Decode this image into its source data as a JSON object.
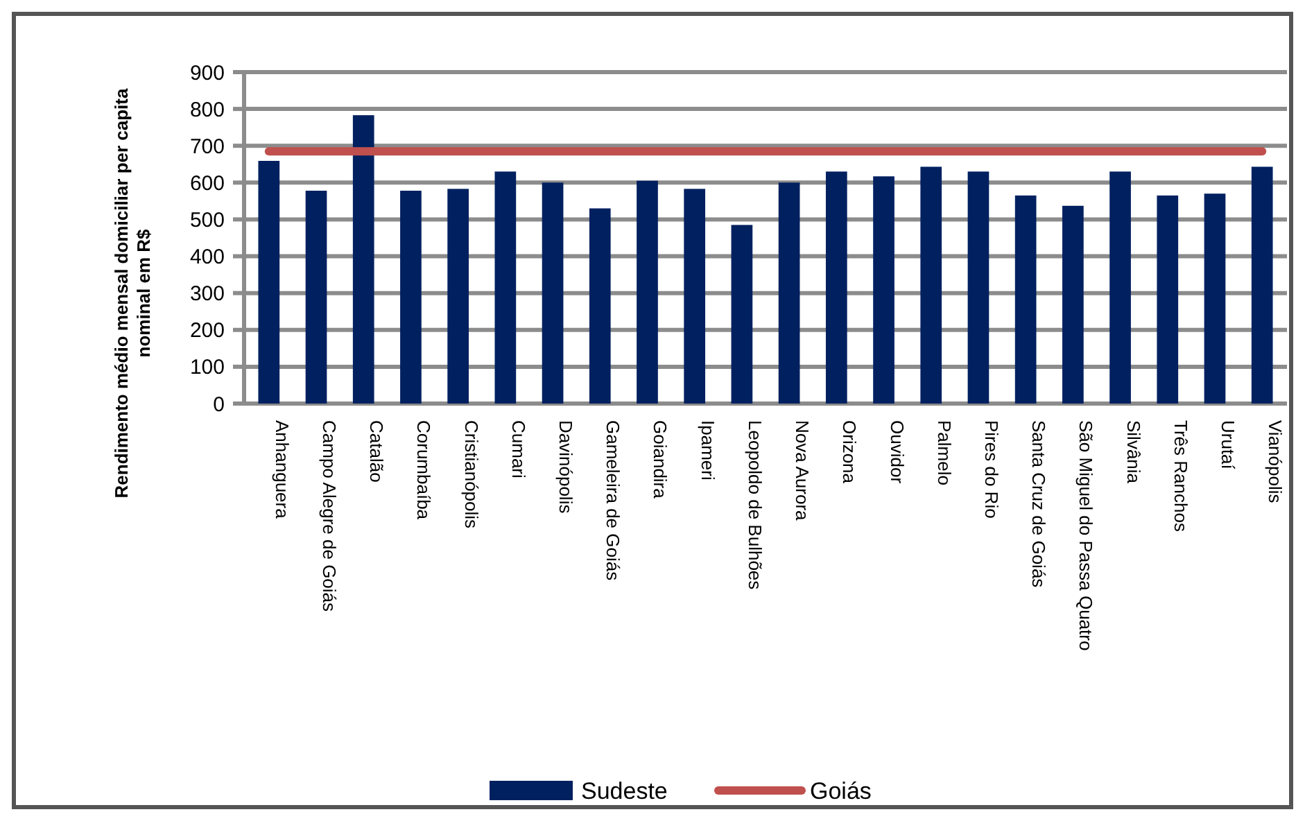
{
  "chart_data": {
    "type": "bar",
    "ylabel": "Rendimento médio mensal domiciliar per capita nominal em R$",
    "categories": [
      "Anhanguera",
      "Campo Alegre de Goiás",
      "Catalão",
      "Corumbaíba",
      "Cristianópolis",
      "Cumari",
      "Davinópolis",
      "Gameleira de Goiás",
      "Goiandira",
      "Ipameri",
      "Leopoldo de Bulhões",
      "Nova Aurora",
      "Orizona",
      "Ouvidor",
      "Palmelo",
      "Pires do Rio",
      "Santa Cruz de Goiás",
      "São Miguel do Passa Quatro",
      "Silvânia",
      "Três Ranchos",
      "Urutaí",
      "Vianópolis"
    ],
    "series": [
      {
        "name": "Sudeste",
        "color": "#002060",
        "values": [
          659,
          578,
          783,
          578,
          583,
          630,
          600,
          530,
          605,
          583,
          485,
          600,
          630,
          617,
          643,
          630,
          565,
          537,
          630,
          565,
          570,
          643
        ]
      },
      {
        "name": "Goiás",
        "type": "line",
        "color": "#c0504d",
        "values": [
          685,
          685,
          685,
          685,
          685,
          685,
          685,
          685,
          685,
          685,
          685,
          685,
          685,
          685,
          685,
          685,
          685,
          685,
          685,
          685,
          685,
          685
        ]
      }
    ],
    "ylim": [
      0,
      900
    ],
    "yticks": [
      0,
      100,
      200,
      300,
      400,
      500,
      600,
      700,
      800,
      900
    ],
    "grid": "y",
    "legend": "bottom"
  }
}
